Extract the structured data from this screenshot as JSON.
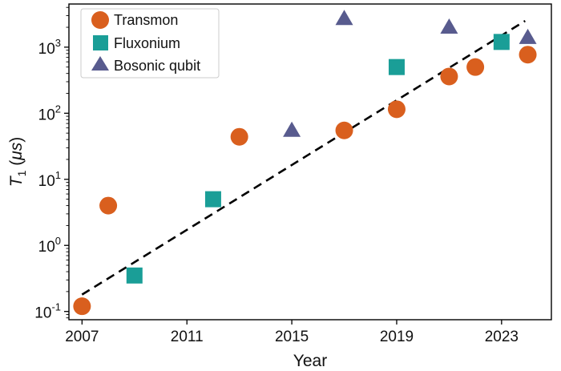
{
  "chart_data": {
    "type": "scatter",
    "xlabel": "Year",
    "ylabel": "T1 (μs)",
    "ylabel_parts": {
      "main": "T",
      "sub": "1",
      "paren_open": " (",
      "unit": "μs",
      "paren_close": ")"
    },
    "xlim": [
      2006.5,
      2024.9
    ],
    "ylim": [
      0.075,
      4500
    ],
    "yscale": "log",
    "xticks": [
      2007,
      2011,
      2015,
      2019,
      2023
    ],
    "xtick_labels": [
      "2007",
      "2011",
      "2015",
      "2019",
      "2023"
    ],
    "yticks": [
      0.1,
      1,
      10,
      100,
      1000
    ],
    "ytick_labels": [
      {
        "base": "10",
        "exp": "-1"
      },
      {
        "base": "10",
        "exp": "0"
      },
      {
        "base": "10",
        "exp": "1"
      },
      {
        "base": "10",
        "exp": "2"
      },
      {
        "base": "10",
        "exp": "3"
      }
    ],
    "grid": false,
    "legend_position": "top-left",
    "series": [
      {
        "name": "Transmon",
        "marker": "circle",
        "color": "#D95F1E",
        "points": [
          {
            "x": 2007,
            "y": 0.12
          },
          {
            "x": 2008,
            "y": 4
          },
          {
            "x": 2013,
            "y": 44
          },
          {
            "x": 2017,
            "y": 55
          },
          {
            "x": 2019,
            "y": 115
          },
          {
            "x": 2021,
            "y": 360
          },
          {
            "x": 2022,
            "y": 500
          },
          {
            "x": 2024,
            "y": 770
          }
        ]
      },
      {
        "name": "Fluxonium",
        "marker": "square",
        "color": "#1A9E97",
        "points": [
          {
            "x": 2009,
            "y": 0.35
          },
          {
            "x": 2012,
            "y": 5
          },
          {
            "x": 2019,
            "y": 500
          },
          {
            "x": 2023,
            "y": 1200
          }
        ]
      },
      {
        "name": "Bosonic qubit",
        "marker": "triangle",
        "color": "#585B8E",
        "points": [
          {
            "x": 2015,
            "y": 55
          },
          {
            "x": 2017,
            "y": 2700
          },
          {
            "x": 2021,
            "y": 2000
          },
          {
            "x": 2024,
            "y": 1400
          }
        ]
      }
    ],
    "trend_line": {
      "style": "dashed",
      "color": "#000000",
      "x": [
        2007,
        2023.9
      ],
      "y": [
        0.18,
        2500
      ]
    }
  }
}
